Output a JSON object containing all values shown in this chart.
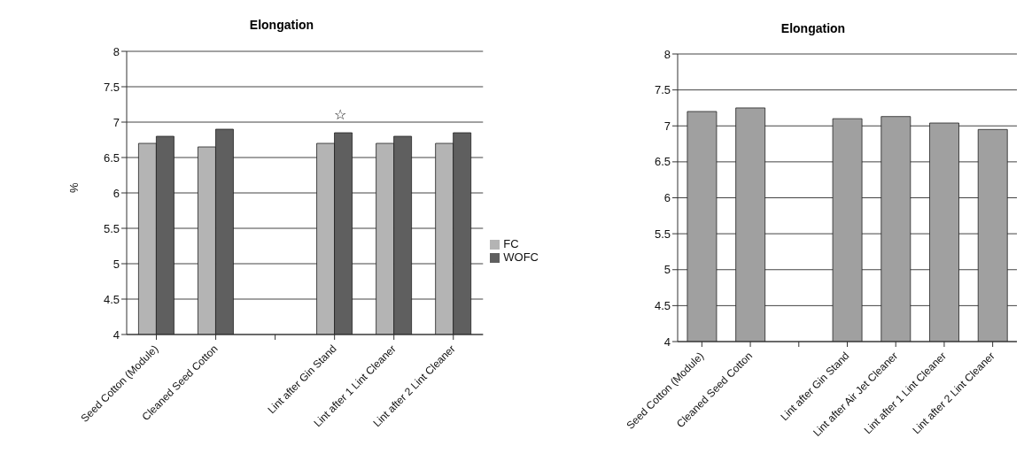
{
  "chart_data": [
    {
      "type": "bar",
      "title": "Elongation",
      "ylabel": "%",
      "categories": [
        "Seed Cotton (Module)",
        "Cleaned Seed Cotton",
        null,
        "Lint after Gin Stand",
        "Lint after 1 Lint Cleaner",
        "Lint after 2 Lint Cleaner"
      ],
      "series": [
        {
          "name": "FC",
          "color": "#b4b4b4",
          "values": [
            6.7,
            6.65,
            null,
            6.7,
            6.7,
            6.7
          ]
        },
        {
          "name": "WOFC",
          "color": "#5f5f5f",
          "values": [
            6.8,
            6.9,
            null,
            6.85,
            6.8,
            6.85
          ]
        }
      ],
      "ylim": [
        4,
        8
      ],
      "yticks": [
        4,
        4.5,
        5,
        5.5,
        6,
        6.5,
        7,
        7.5,
        8
      ],
      "grid": "y",
      "legend": "right",
      "annotations": [
        "☆"
      ]
    },
    {
      "type": "bar",
      "title": "Elongation",
      "categories": [
        "Seed Cotton (Module)",
        "Cleaned Seed Cotton",
        null,
        "Lint after Gin Stand",
        "Lint after Air Jet Cleaner",
        "Lint after 1 Lint Cleaner",
        "Lint after 2 Lint Cleaner"
      ],
      "series": [
        {
          "color": "#a0a0a0",
          "values": [
            7.2,
            7.25,
            null,
            7.1,
            7.13,
            7.04,
            6.95
          ]
        }
      ],
      "ylim": [
        4,
        8
      ],
      "yticks": [
        4,
        4.5,
        5,
        5.5,
        6,
        6.5,
        7,
        7.5,
        8
      ],
      "grid": "y"
    }
  ]
}
